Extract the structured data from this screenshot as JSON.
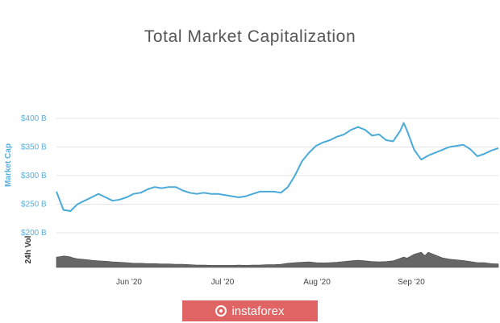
{
  "chart_data": {
    "type": "line",
    "title": "Total Market Capitalization",
    "xlabel": "",
    "ylabel": "Market Cap",
    "y_ticks": [
      "$200 B",
      "$250 B",
      "$300 B",
      "$350 B",
      "$400 B"
    ],
    "ylim": [
      200,
      400
    ],
    "x_ticks": [
      "Jun '20",
      "Jul '20",
      "Aug '20",
      "Sep '20"
    ],
    "grid": true,
    "legend": "none",
    "colors": {
      "market_cap": "#4aaad9",
      "volume": "#666666"
    },
    "series": [
      {
        "values": [
          [
            0,
            272
          ],
          [
            2,
            240
          ],
          [
            4,
            238
          ],
          [
            6,
            250
          ],
          [
            8,
            256
          ],
          [
            10,
            262
          ],
          [
            12,
            268
          ],
          [
            14,
            262
          ],
          [
            16,
            256
          ],
          [
            18,
            258
          ],
          [
            20,
            262
          ],
          [
            22,
            268
          ],
          [
            24,
            270
          ],
          [
            26,
            276
          ],
          [
            28,
            280
          ],
          [
            30,
            278
          ],
          [
            32,
            280
          ],
          [
            34,
            280
          ],
          [
            36,
            274
          ],
          [
            38,
            270
          ],
          [
            40,
            268
          ],
          [
            42,
            270
          ],
          [
            44,
            268
          ],
          [
            46,
            268
          ],
          [
            48,
            266
          ],
          [
            50,
            264
          ],
          [
            52,
            262
          ],
          [
            54,
            264
          ],
          [
            56,
            268
          ],
          [
            58,
            272
          ],
          [
            60,
            272
          ],
          [
            62,
            272
          ],
          [
            64,
            270
          ],
          [
            66,
            280
          ],
          [
            68,
            300
          ],
          [
            70,
            325
          ],
          [
            72,
            340
          ],
          [
            74,
            352
          ],
          [
            76,
            358
          ],
          [
            78,
            362
          ],
          [
            80,
            368
          ],
          [
            82,
            372
          ],
          [
            84,
            380
          ],
          [
            86,
            385
          ],
          [
            88,
            380
          ],
          [
            90,
            370
          ],
          [
            92,
            372
          ],
          [
            94,
            362
          ],
          [
            96,
            360
          ],
          [
            98,
            378
          ],
          [
            99,
            392
          ],
          [
            100,
            378
          ],
          [
            102,
            345
          ],
          [
            104,
            328
          ],
          [
            106,
            335
          ],
          [
            108,
            340
          ],
          [
            110,
            345
          ],
          [
            112,
            350
          ],
          [
            114,
            352
          ],
          [
            116,
            354
          ],
          [
            118,
            346
          ],
          [
            120,
            334
          ],
          [
            122,
            338
          ],
          [
            124,
            344
          ],
          [
            126,
            348
          ]
        ]
      },
      {
        "values": [
          [
            0,
            30
          ],
          [
            1,
            31
          ],
          [
            2,
            33
          ],
          [
            3,
            32
          ],
          [
            4,
            30
          ],
          [
            5,
            27
          ],
          [
            6,
            25
          ],
          [
            7,
            24
          ],
          [
            8,
            23
          ],
          [
            10,
            21
          ],
          [
            12,
            19
          ],
          [
            14,
            18
          ],
          [
            16,
            16
          ],
          [
            18,
            15
          ],
          [
            20,
            14
          ],
          [
            22,
            12
          ],
          [
            24,
            12
          ],
          [
            26,
            11
          ],
          [
            28,
            11
          ],
          [
            30,
            10
          ],
          [
            32,
            10
          ],
          [
            34,
            9
          ],
          [
            36,
            9
          ],
          [
            38,
            8
          ],
          [
            40,
            7
          ],
          [
            42,
            7
          ],
          [
            44,
            6
          ],
          [
            46,
            6
          ],
          [
            48,
            6
          ],
          [
            50,
            6
          ],
          [
            52,
            7
          ],
          [
            54,
            6
          ],
          [
            56,
            7
          ],
          [
            58,
            7
          ],
          [
            60,
            8
          ],
          [
            62,
            8
          ],
          [
            64,
            9
          ],
          [
            66,
            12
          ],
          [
            68,
            14
          ],
          [
            70,
            15
          ],
          [
            72,
            16
          ],
          [
            74,
            14
          ],
          [
            76,
            13
          ],
          [
            78,
            14
          ],
          [
            80,
            15
          ],
          [
            82,
            17
          ],
          [
            84,
            19
          ],
          [
            86,
            21
          ],
          [
            88,
            19
          ],
          [
            90,
            17
          ],
          [
            92,
            16
          ],
          [
            94,
            17
          ],
          [
            96,
            19
          ],
          [
            98,
            26
          ],
          [
            99,
            30
          ],
          [
            100,
            27
          ],
          [
            102,
            38
          ],
          [
            104,
            44
          ],
          [
            105,
            34
          ],
          [
            106,
            44
          ],
          [
            108,
            36
          ],
          [
            110,
            28
          ],
          [
            112,
            24
          ],
          [
            114,
            22
          ],
          [
            116,
            20
          ],
          [
            118,
            17
          ],
          [
            120,
            14
          ],
          [
            122,
            14
          ],
          [
            124,
            11
          ],
          [
            126,
            10
          ]
        ]
      }
    ],
    "volume_axis_label": "24h Vol",
    "volume_ylim": [
      0,
      100
    ]
  },
  "watermark": {
    "text": "instaforex"
  }
}
